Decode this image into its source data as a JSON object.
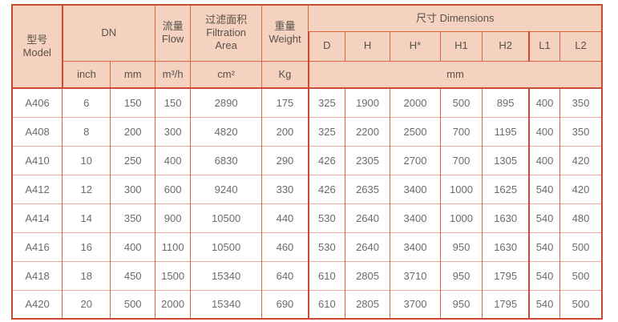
{
  "table": {
    "colors": {
      "header_background": "#f5d2bf",
      "outer_border": "#c94a35",
      "header_grid": "#e0633c",
      "body_vertical_grid": "#e2604a",
      "body_horizontal_grid": "#f2a89a",
      "group_separator": "#d04a33",
      "header_text": "#57514b",
      "body_text": "#6b6b6b"
    },
    "header": {
      "model_zh": "型号",
      "model_en": "Model",
      "dn": "DN",
      "flow_zh": "流量",
      "flow_en": "Flow",
      "filtration_zh": "过滤面积",
      "filtration_en1": "Filtration",
      "filtration_en2": "Area",
      "weight_zh": "重量",
      "weight_en": "Weight",
      "dimensions": "尺寸 Dimensions",
      "dim_cols": [
        "D",
        "H",
        "H*",
        "H1",
        "H2",
        "L1",
        "L2"
      ],
      "units": {
        "inch": "inch",
        "mm": "mm",
        "flow": "m³/h",
        "area": "cm²",
        "weight": "Kg",
        "dims_mm": "mm"
      }
    },
    "rows": [
      [
        "A406",
        "6",
        "150",
        "150",
        "2890",
        "175",
        "325",
        "1900",
        "2000",
        "500",
        "895",
        "400",
        "350"
      ],
      [
        "A408",
        "8",
        "200",
        "300",
        "4820",
        "200",
        "325",
        "2200",
        "2500",
        "700",
        "1195",
        "400",
        "350"
      ],
      [
        "A410",
        "10",
        "250",
        "400",
        "6830",
        "290",
        "426",
        "2305",
        "2700",
        "700",
        "1305",
        "400",
        "420"
      ],
      [
        "A412",
        "12",
        "300",
        "600",
        "9240",
        "330",
        "426",
        "2635",
        "3400",
        "1000",
        "1625",
        "540",
        "420"
      ],
      [
        "A414",
        "14",
        "350",
        "900",
        "10500",
        "440",
        "530",
        "2640",
        "3400",
        "1000",
        "1630",
        "540",
        "480"
      ],
      [
        "A416",
        "16",
        "400",
        "1100",
        "10500",
        "460",
        "530",
        "2640",
        "3400",
        "950",
        "1630",
        "540",
        "500"
      ],
      [
        "A418",
        "18",
        "450",
        "1500",
        "15340",
        "640",
        "610",
        "2805",
        "3710",
        "950",
        "1795",
        "540",
        "500"
      ],
      [
        "A420",
        "20",
        "500",
        "2000",
        "15340",
        "690",
        "610",
        "2805",
        "3700",
        "950",
        "1795",
        "540",
        "500"
      ]
    ]
  }
}
